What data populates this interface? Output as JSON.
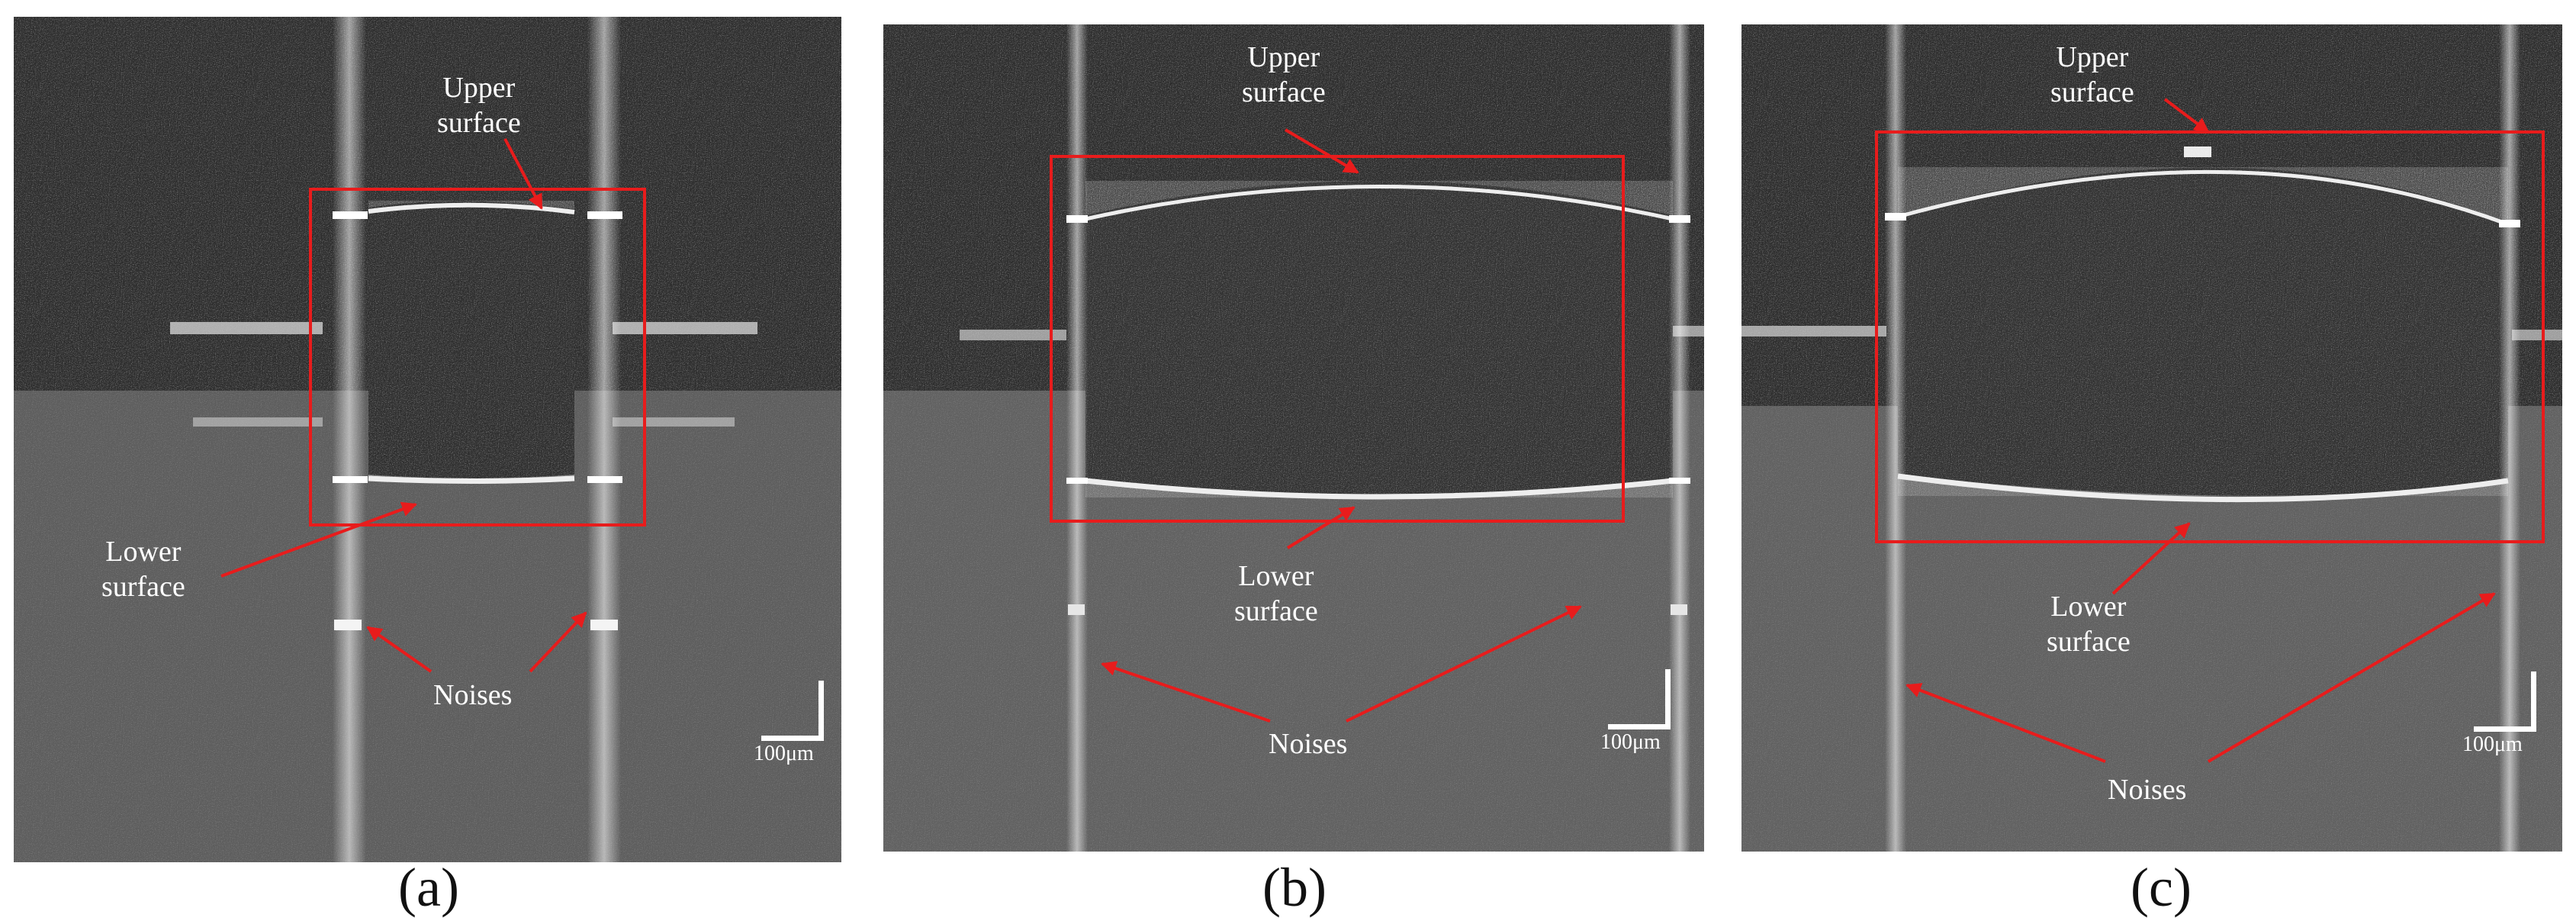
{
  "panels": [
    {
      "caption": "(a)",
      "labels": {
        "upper": "Upper\nsurface",
        "lower": "Lower\nsurface",
        "noises": "Noises"
      },
      "scale_bar": "100μm"
    },
    {
      "caption": "(b)",
      "labels": {
        "upper": "Upper\nsurface",
        "lower": "Lower\nsurface",
        "noises": "Noises"
      },
      "scale_bar": "100μm"
    },
    {
      "caption": "(c)",
      "labels": {
        "upper": "Upper\nsurface",
        "lower": "Lower\nsurface",
        "noises": "Noises"
      },
      "scale_bar": "100μm"
    }
  ],
  "colors": {
    "annotation": "#e81c1c",
    "label_text": "#ffffff",
    "background_dark": "#2f2f2f",
    "background_light": "#5a5a5a"
  }
}
